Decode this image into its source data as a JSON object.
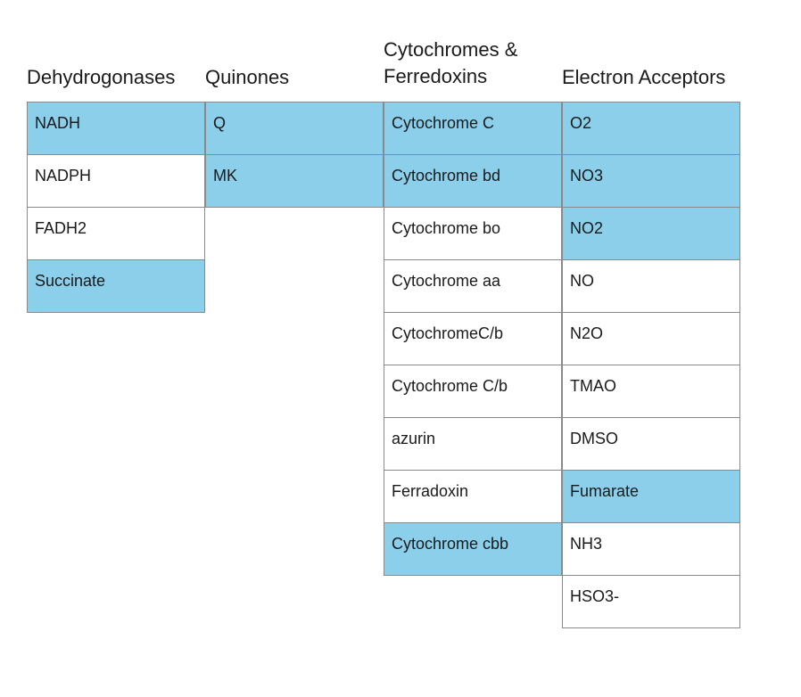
{
  "columns": [
    {
      "header": "Dehydrogonases",
      "cells": [
        {
          "text": "NADH",
          "highlight": true
        },
        {
          "text": "NADPH",
          "highlight": false
        },
        {
          "text": "FADH2",
          "highlight": false
        },
        {
          "text": "Succinate",
          "highlight": true
        }
      ]
    },
    {
      "header": "Quinones",
      "cells": [
        {
          "text": "Q",
          "highlight": true
        },
        {
          "text": "MK",
          "highlight": true
        }
      ]
    },
    {
      "header": "Cytochromes &\nFerredoxins",
      "cells": [
        {
          "text": "Cytochrome C",
          "highlight": true
        },
        {
          "text": "Cytochrome bd",
          "highlight": true
        },
        {
          "text": "Cytochrome bo",
          "highlight": false
        },
        {
          "text": "Cytochrome aa",
          "highlight": false
        },
        {
          "text": "CytochromeC/b",
          "highlight": false
        },
        {
          "text": "Cytochrome C/b",
          "highlight": false
        },
        {
          "text": "azurin",
          "highlight": false
        },
        {
          "text": "Ferradoxin",
          "highlight": false
        },
        {
          "text": "Cytochrome cbb",
          "highlight": true
        }
      ]
    },
    {
      "header": "Electron Acceptors",
      "cells": [
        {
          "text": "O2",
          "highlight": true
        },
        {
          "text": "NO3",
          "highlight": true
        },
        {
          "text": "NO2",
          "highlight": true
        },
        {
          "text": "NO",
          "highlight": false
        },
        {
          "text": "N2O",
          "highlight": false
        },
        {
          "text": "TMAO",
          "highlight": false
        },
        {
          "text": "DMSO",
          "highlight": false
        },
        {
          "text": "Fumarate",
          "highlight": true
        },
        {
          "text": "NH3",
          "highlight": false
        },
        {
          "text": "HSO3-",
          "highlight": false
        }
      ]
    }
  ],
  "colors": {
    "highlight": "#8ccfea",
    "plain": "#ffffff",
    "border": "#8a8a8a"
  }
}
